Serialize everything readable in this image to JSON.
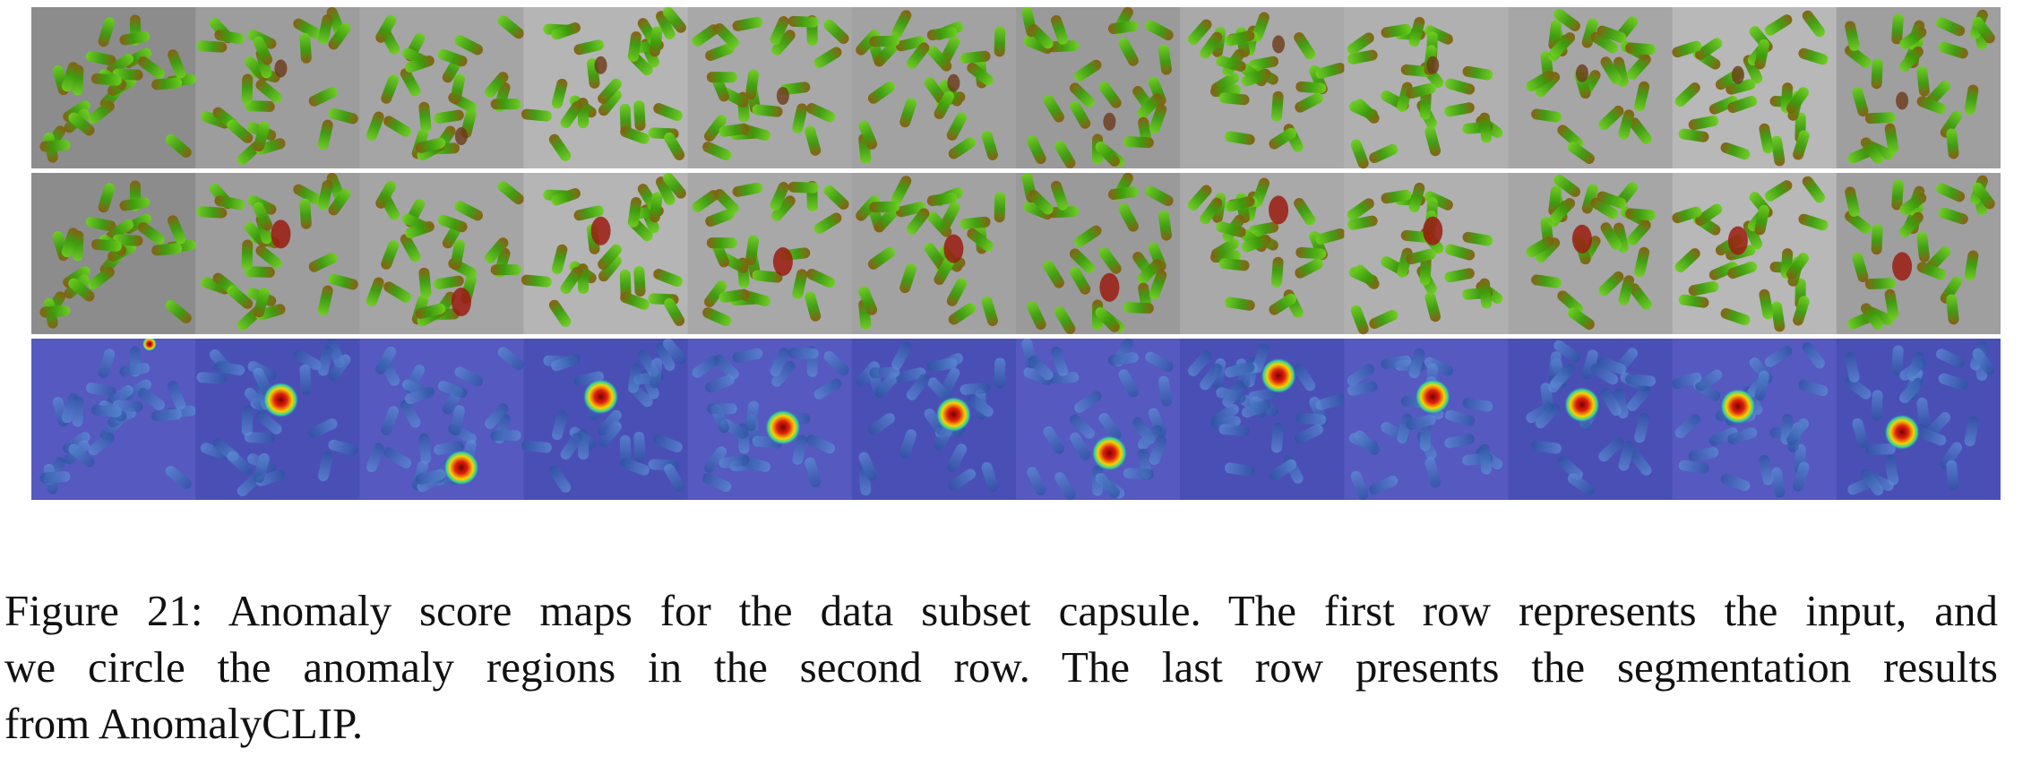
{
  "figure": {
    "subset": "capsule",
    "rows": [
      {
        "role": "input"
      },
      {
        "role": "circled-anomaly"
      },
      {
        "role": "segmentation-result"
      }
    ],
    "columns": 12,
    "anomaly_positions": [
      null,
      [
        0.52,
        0.38
      ],
      [
        0.62,
        0.8
      ],
      [
        0.47,
        0.36
      ],
      [
        0.58,
        0.55
      ],
      [
        0.62,
        0.47
      ],
      [
        0.57,
        0.71
      ],
      [
        0.6,
        0.23
      ],
      [
        0.54,
        0.36
      ],
      [
        0.45,
        0.41
      ],
      [
        0.4,
        0.42
      ],
      [
        0.4,
        0.58
      ]
    ],
    "row_colors": {
      "input": "#9a9a9a",
      "capsule": "#3fa80f",
      "circle": "#9b1c12",
      "segmentation": "#4b4fb8",
      "hot": "#d81a0e"
    }
  },
  "caption": {
    "lines": [
      "Figure 21: Anomaly score maps for the data subset capsule. The first row represents the input, and",
      "we circle the anomaly regions in the second row.  The last row presents the segmentation results",
      "from AnomalyCLIP."
    ]
  }
}
